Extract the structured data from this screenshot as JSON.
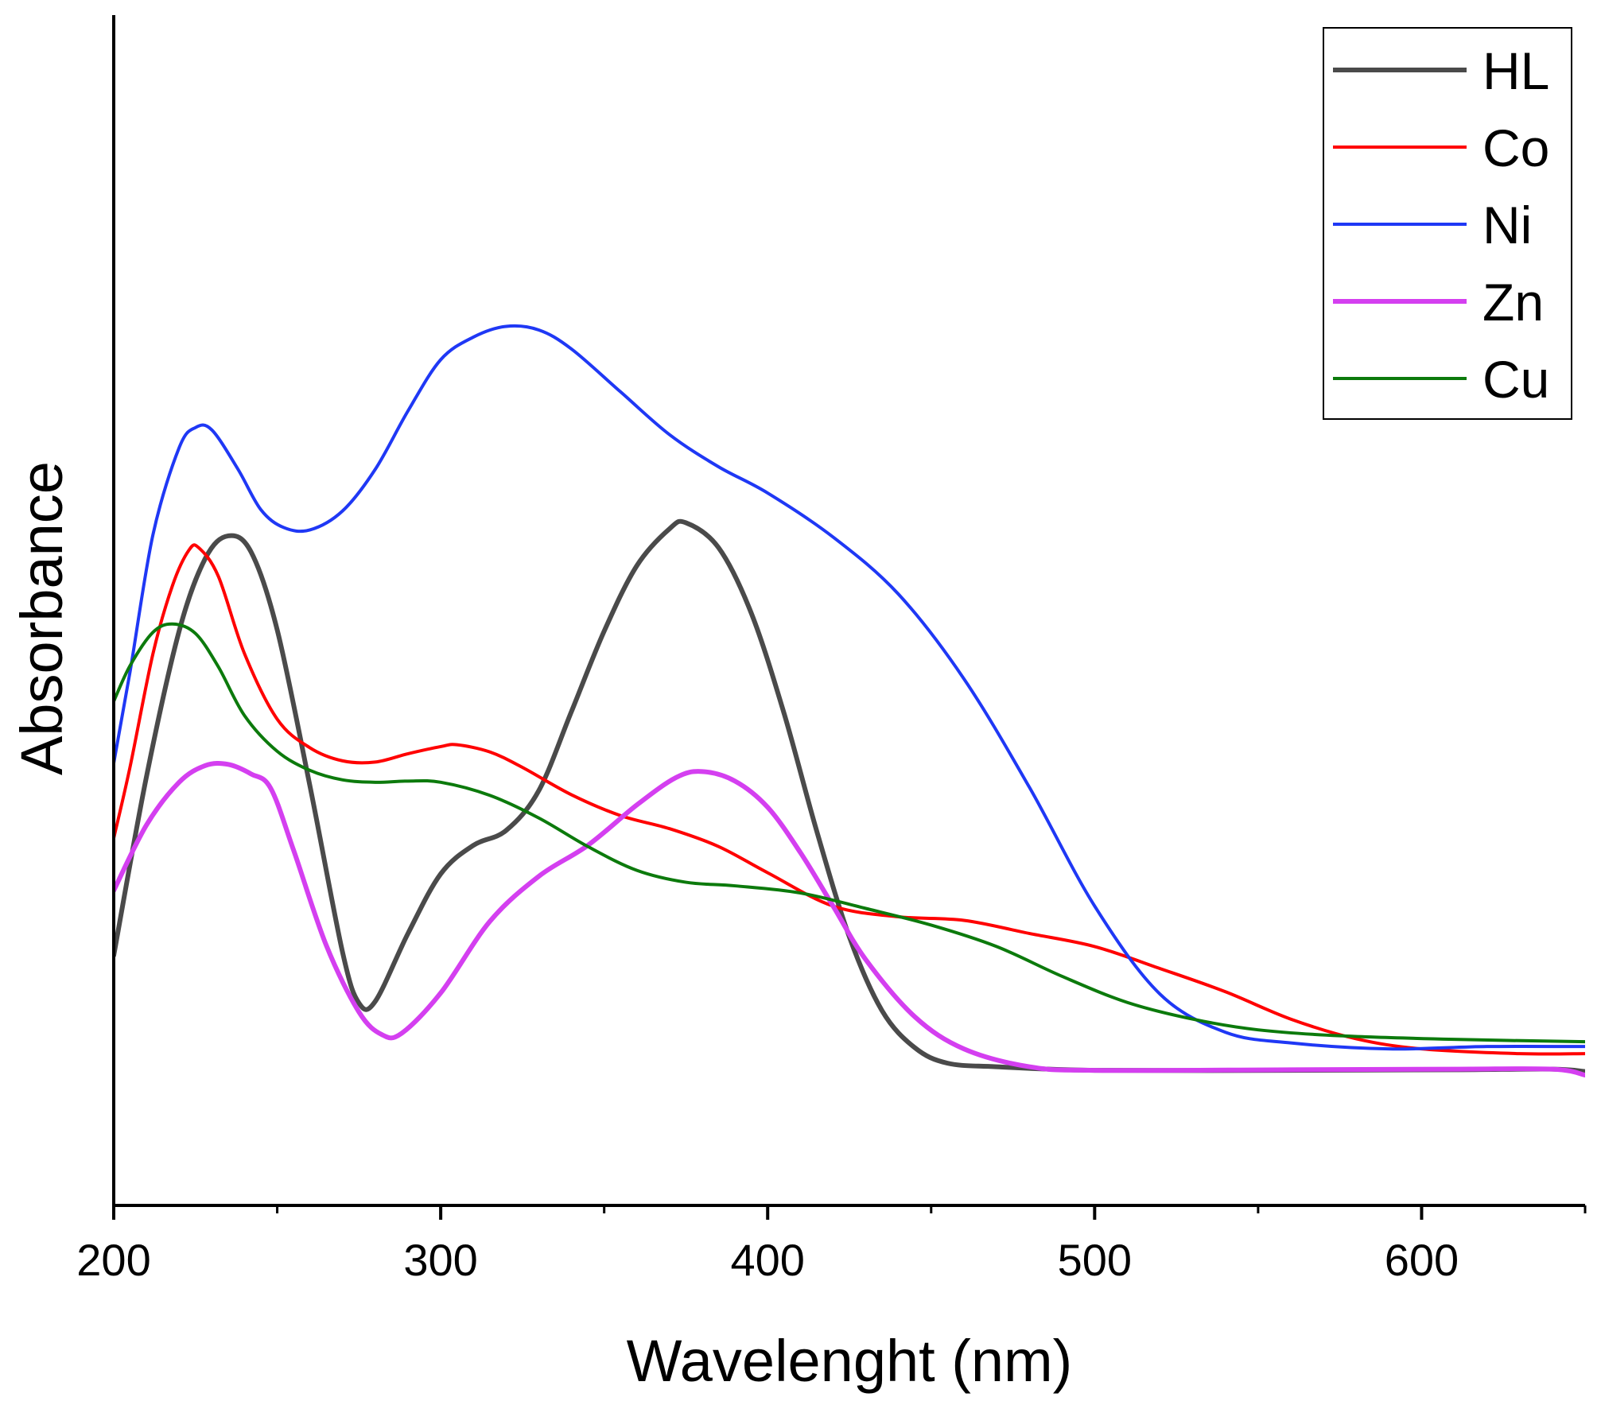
{
  "chart_data": {
    "type": "line",
    "title": "",
    "xlabel": "Wavelenght (nm)",
    "ylabel": "Absorbance",
    "xlim": [
      200,
      650
    ],
    "ylim": [
      0,
      1
    ],
    "x_ticks": [
      200,
      300,
      400,
      500,
      600
    ],
    "x_tick_labels": [
      "200",
      "300",
      "400",
      "500",
      "600"
    ],
    "x_minor_ticks": [
      250,
      350,
      450,
      550,
      650
    ],
    "y_ticks_shown": false,
    "grid": false,
    "legend": {
      "placement": "top-right",
      "entries": [
        "HL",
        "Co",
        "Ni",
        "Zn",
        "Cu"
      ]
    },
    "series": [
      {
        "name": "HL",
        "color": "#4a4a4a",
        "line_width": 6,
        "points": [
          [
            200,
            0.21
          ],
          [
            210,
            0.36
          ],
          [
            220,
            0.4825
          ],
          [
            228,
            0.5435
          ],
          [
            235,
            0.5625
          ],
          [
            242,
            0.549
          ],
          [
            250,
            0.4835
          ],
          [
            260,
            0.3525
          ],
          [
            270,
            0.2125
          ],
          [
            275,
            0.17
          ],
          [
            280,
            0.1715
          ],
          [
            290,
            0.2285
          ],
          [
            300,
            0.2785
          ],
          [
            310,
            0.3025
          ],
          [
            320,
            0.315
          ],
          [
            330,
            0.3485
          ],
          [
            340,
            0.415
          ],
          [
            350,
            0.4825
          ],
          [
            360,
            0.5375
          ],
          [
            370,
            0.5685
          ],
          [
            375,
            0.5735
          ],
          [
            385,
            0.5525
          ],
          [
            395,
            0.4975
          ],
          [
            405,
            0.4135
          ],
          [
            415,
            0.3145
          ],
          [
            425,
            0.2255
          ],
          [
            435,
            0.1635
          ],
          [
            445,
            0.1325
          ],
          [
            455,
            0.1195
          ],
          [
            470,
            0.1165
          ],
          [
            500,
            0.1135
          ],
          [
            560,
            0.1135
          ],
          [
            610,
            0.114
          ],
          [
            640,
            0.1145
          ],
          [
            650,
            0.1125
          ]
        ]
      },
      {
        "name": "Co",
        "color": "#ff0000",
        "line_width": 4,
        "points": [
          [
            200,
            0.3085
          ],
          [
            205,
            0.3685
          ],
          [
            212,
            0.4635
          ],
          [
            218,
            0.521
          ],
          [
            223,
            0.5505
          ],
          [
            226,
            0.5525
          ],
          [
            232,
            0.5285
          ],
          [
            240,
            0.4635
          ],
          [
            250,
            0.4085
          ],
          [
            260,
            0.3845
          ],
          [
            270,
            0.3735
          ],
          [
            280,
            0.3725
          ],
          [
            290,
            0.3795
          ],
          [
            300,
            0.3855
          ],
          [
            305,
            0.387
          ],
          [
            315,
            0.381
          ],
          [
            325,
            0.368
          ],
          [
            340,
            0.345
          ],
          [
            355,
            0.3275
          ],
          [
            370,
            0.3165
          ],
          [
            385,
            0.3015
          ],
          [
            400,
            0.2795
          ],
          [
            420,
            0.2515
          ],
          [
            440,
            0.2425
          ],
          [
            460,
            0.2395
          ],
          [
            480,
            0.2285
          ],
          [
            500,
            0.2175
          ],
          [
            520,
            0.199
          ],
          [
            540,
            0.1795
          ],
          [
            560,
            0.1565
          ],
          [
            580,
            0.14
          ],
          [
            600,
            0.1315
          ],
          [
            630,
            0.1275
          ],
          [
            650,
            0.1275
          ]
        ]
      },
      {
        "name": "Ni",
        "color": "#1f38f5",
        "line_width": 4,
        "points": [
          [
            200,
            0.3715
          ],
          [
            205,
            0.4485
          ],
          [
            212,
            0.5635
          ],
          [
            220,
            0.6365
          ],
          [
            225,
            0.6535
          ],
          [
            230,
            0.6515
          ],
          [
            238,
            0.6185
          ],
          [
            245,
            0.5845
          ],
          [
            252,
            0.5695
          ],
          [
            260,
            0.5675
          ],
          [
            270,
            0.5835
          ],
          [
            280,
            0.6185
          ],
          [
            290,
            0.6675
          ],
          [
            300,
            0.7105
          ],
          [
            310,
            0.7295
          ],
          [
            320,
            0.7385
          ],
          [
            330,
            0.7355
          ],
          [
            340,
            0.7195
          ],
          [
            355,
            0.6835
          ],
          [
            370,
            0.6475
          ],
          [
            385,
            0.6205
          ],
          [
            400,
            0.5985
          ],
          [
            420,
            0.5615
          ],
          [
            440,
            0.5135
          ],
          [
            460,
            0.4425
          ],
          [
            480,
            0.3515
          ],
          [
            500,
            0.2515
          ],
          [
            520,
            0.1775
          ],
          [
            540,
            0.1455
          ],
          [
            560,
            0.1365
          ],
          [
            590,
            0.1315
          ],
          [
            620,
            0.1335
          ],
          [
            650,
            0.1335
          ]
        ]
      },
      {
        "name": "Zn",
        "color": "#d43ff0",
        "line_width": 6,
        "points": [
          [
            200,
            0.2645
          ],
          [
            210,
            0.3195
          ],
          [
            220,
            0.3555
          ],
          [
            228,
            0.3695
          ],
          [
            235,
            0.3705
          ],
          [
            242,
            0.3625
          ],
          [
            248,
            0.3505
          ],
          [
            255,
            0.2985
          ],
          [
            265,
            0.2185
          ],
          [
            275,
            0.1625
          ],
          [
            282,
            0.1435
          ],
          [
            288,
            0.1445
          ],
          [
            300,
            0.1785
          ],
          [
            315,
            0.2385
          ],
          [
            330,
            0.2765
          ],
          [
            345,
            0.3025
          ],
          [
            360,
            0.3365
          ],
          [
            372,
            0.3595
          ],
          [
            380,
            0.3645
          ],
          [
            390,
            0.3565
          ],
          [
            400,
            0.3345
          ],
          [
            410,
            0.2965
          ],
          [
            420,
            0.2515
          ],
          [
            430,
            0.2065
          ],
          [
            445,
            0.1585
          ],
          [
            460,
            0.1315
          ],
          [
            480,
            0.1165
          ],
          [
            500,
            0.1135
          ],
          [
            560,
            0.114
          ],
          [
            610,
            0.1145
          ],
          [
            640,
            0.1145
          ],
          [
            650,
            0.1095
          ]
        ]
      },
      {
        "name": "Cu",
        "color": "#0c7a0c",
        "line_width": 4,
        "points": [
          [
            200,
            0.4235
          ],
          [
            205,
            0.4535
          ],
          [
            212,
            0.4815
          ],
          [
            218,
            0.4885
          ],
          [
            225,
            0.4805
          ],
          [
            232,
            0.4525
          ],
          [
            240,
            0.4115
          ],
          [
            250,
            0.3815
          ],
          [
            260,
            0.3655
          ],
          [
            270,
            0.3575
          ],
          [
            280,
            0.3555
          ],
          [
            290,
            0.3565
          ],
          [
            300,
            0.3555
          ],
          [
            315,
            0.3445
          ],
          [
            330,
            0.3255
          ],
          [
            345,
            0.3015
          ],
          [
            360,
            0.2815
          ],
          [
            375,
            0.2715
          ],
          [
            390,
            0.2685
          ],
          [
            410,
            0.2625
          ],
          [
            430,
            0.2495
          ],
          [
            450,
            0.2355
          ],
          [
            470,
            0.2175
          ],
          [
            490,
            0.1925
          ],
          [
            510,
            0.1705
          ],
          [
            530,
            0.1565
          ],
          [
            550,
            0.1475
          ],
          [
            575,
            0.1425
          ],
          [
            610,
            0.1395
          ],
          [
            650,
            0.1375
          ]
        ]
      }
    ]
  }
}
